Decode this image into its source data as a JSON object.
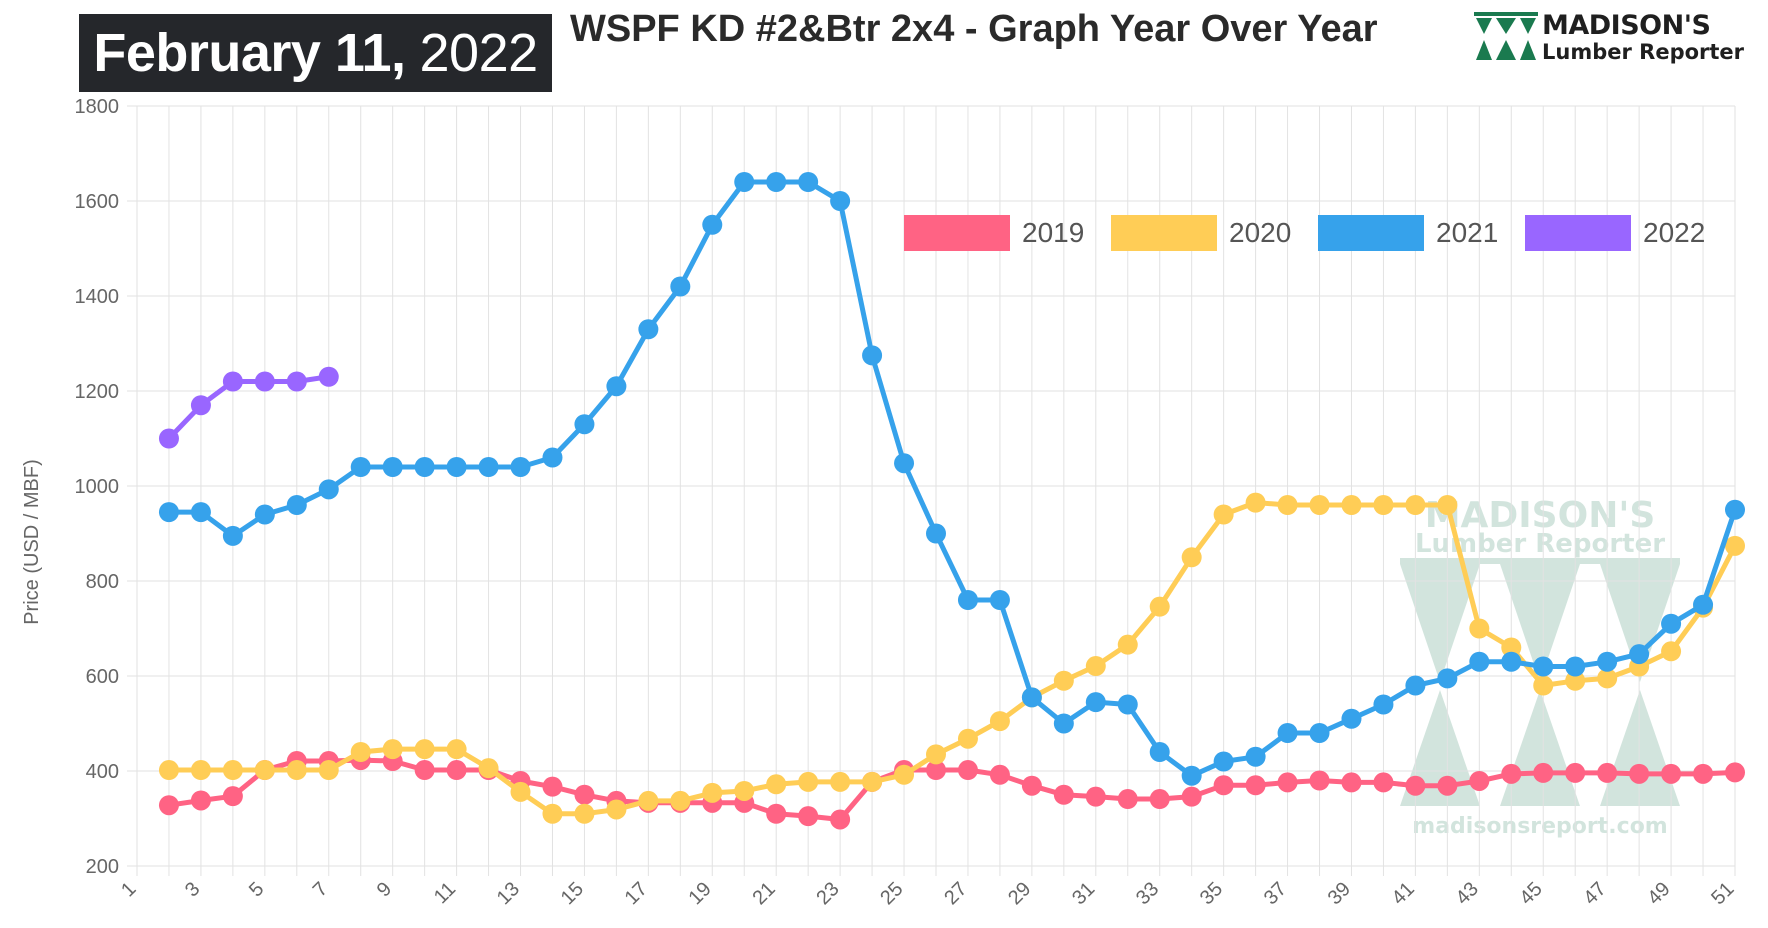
{
  "header": {
    "date_month_day": "February 11,",
    "date_year": "2022",
    "title": "WSPF KD #2&Btr 2x4 - Graph Year Over Year",
    "logo_name": "MADISON'S",
    "logo_sub": "Lumber Reporter",
    "logo_color": "#1a7a4f"
  },
  "watermark": {
    "name": "MADISON'S",
    "sub": "Lumber Reporter",
    "url": "madisonsreport.com",
    "color": "#a7cbbd"
  },
  "chart_data": {
    "type": "line",
    "title": "WSPF KD #2&Btr 2x4 - Graph Year Over Year",
    "ylabel": "Price (USD / MBF)",
    "xlabel": "",
    "xlim": [
      1,
      51
    ],
    "ylim": [
      200,
      1800
    ],
    "x_ticks": [
      1,
      3,
      5,
      7,
      9,
      11,
      13,
      15,
      17,
      19,
      21,
      23,
      25,
      27,
      29,
      31,
      33,
      35,
      37,
      39,
      41,
      43,
      45,
      47,
      49,
      51
    ],
    "y_ticks": [
      200,
      400,
      600,
      800,
      1000,
      1200,
      1400,
      1600,
      1800
    ],
    "grid": true,
    "legend_position": "top-right",
    "series": [
      {
        "name": "2019",
        "color": "#ff6384",
        "x": [
          2,
          3,
          4,
          5,
          6,
          7,
          8,
          9,
          10,
          11,
          12,
          13,
          14,
          15,
          16,
          17,
          18,
          19,
          20,
          21,
          22,
          23,
          24,
          25,
          26,
          27,
          28,
          29,
          30,
          31,
          32,
          33,
          34,
          35,
          36,
          37,
          38,
          39,
          40,
          41,
          42,
          43,
          44,
          45,
          46,
          47,
          48,
          49,
          50,
          51
        ],
        "y": [
          328,
          338,
          347,
          402,
          421,
          421,
          423,
          421,
          402,
          402,
          402,
          379,
          367,
          350,
          337,
          333,
          333,
          333,
          333,
          310,
          305,
          298,
          377,
          402,
          402,
          402,
          392,
          369,
          350,
          346,
          341,
          341,
          346,
          370,
          370,
          376,
          380,
          376,
          376,
          369,
          369,
          379,
          394,
          396,
          396,
          396,
          394,
          394,
          394,
          397
        ]
      },
      {
        "name": "2020",
        "color": "#ffcd56",
        "x": [
          2,
          3,
          4,
          5,
          6,
          7,
          8,
          9,
          10,
          11,
          12,
          13,
          14,
          15,
          16,
          17,
          18,
          19,
          20,
          21,
          22,
          23,
          24,
          25,
          26,
          27,
          28,
          29,
          30,
          31,
          32,
          33,
          34,
          35,
          36,
          37,
          38,
          39,
          40,
          41,
          42,
          43,
          44,
          45,
          46,
          47,
          48,
          49,
          50,
          51
        ],
        "y": [
          402,
          402,
          402,
          402,
          402,
          402,
          440,
          446,
          446,
          446,
          406,
          356,
          310,
          310,
          319,
          337,
          337,
          354,
          358,
          372,
          377,
          377,
          377,
          392,
          435,
          468,
          505,
          555,
          590,
          621,
          666,
          746,
          850,
          940,
          965,
          960,
          960,
          960,
          960,
          960,
          960,
          700,
          660,
          580,
          590,
          595,
          620,
          652,
          744,
          874
        ]
      },
      {
        "name": "2021",
        "color": "#36a2eb",
        "x": [
          2,
          3,
          4,
          5,
          6,
          7,
          8,
          9,
          10,
          11,
          12,
          13,
          14,
          15,
          16,
          17,
          18,
          19,
          20,
          21,
          22,
          23,
          24,
          25,
          26,
          27,
          28,
          29,
          30,
          31,
          32,
          33,
          34,
          35,
          36,
          37,
          38,
          39,
          40,
          41,
          42,
          43,
          44,
          45,
          46,
          47,
          48,
          49,
          50,
          51
        ],
        "y": [
          945,
          945,
          895,
          940,
          960,
          993,
          1040,
          1040,
          1040,
          1040,
          1040,
          1040,
          1060,
          1130,
          1210,
          1330,
          1420,
          1550,
          1640,
          1640,
          1640,
          1600,
          1275,
          1048,
          900,
          760,
          760,
          555,
          500,
          545,
          540,
          440,
          390,
          420,
          430,
          480,
          480,
          510,
          540,
          580,
          595,
          630,
          630,
          620,
          620,
          630,
          646,
          710,
          750,
          950
        ]
      },
      {
        "name": "2022",
        "color": "#9966ff",
        "x": [
          2,
          3,
          4,
          5,
          6,
          7
        ],
        "y": [
          1100,
          1170,
          1220,
          1220,
          1220,
          1230
        ]
      }
    ]
  }
}
